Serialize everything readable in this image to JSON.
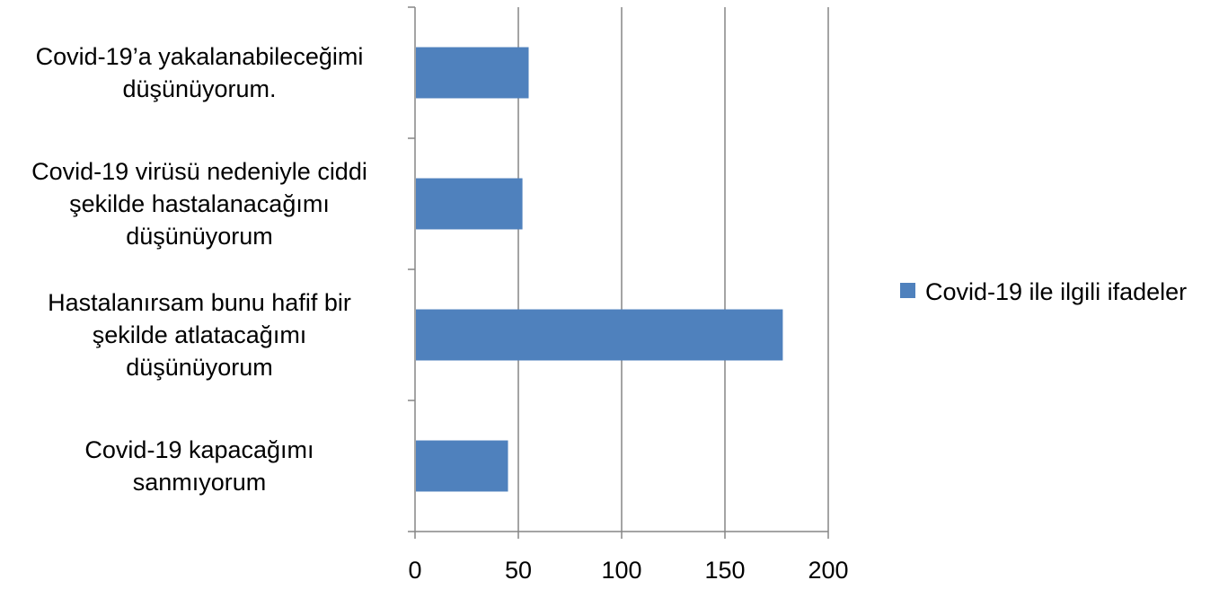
{
  "chart_data": {
    "type": "bar",
    "orientation": "horizontal",
    "categories": [
      [
        "Covid-19’a yakalanabileceğimi",
        "düşünüyorum."
      ],
      [
        "Covid-19 virüsü nedeniyle ciddi",
        "şekilde hastalanacağımı",
        "düşünüyorum"
      ],
      [
        "Hastalanırsam bunu hafif bir",
        "şekilde atlatacağımı",
        "düşünüyorum"
      ],
      [
        "Covid-19 kapacağımı",
        "sanmıyorum"
      ]
    ],
    "series": [
      {
        "name": "Covid-19 ile ilgili ifadeler",
        "values": [
          55,
          52,
          178,
          45
        ],
        "color": "#4F81BD"
      }
    ],
    "xlim": [
      0,
      200
    ],
    "xticks": [
      0,
      50,
      100,
      150,
      200
    ],
    "grid": "vertical",
    "legend_position": "right"
  },
  "legend": {
    "label": "Covid-19 ile ilgili ifadeler"
  }
}
